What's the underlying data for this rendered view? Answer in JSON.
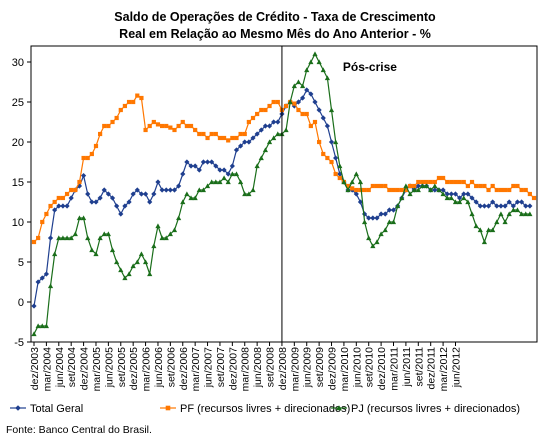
{
  "chart_data": {
    "type": "line",
    "title": "Saldo de Operações de Crédito - Taxa de Crescimento",
    "subtitle": "Real em Relação ao Mesmo Mês do Ano Anterior - %",
    "annotation": "Pós-crise",
    "event_x": "dez/2008",
    "ylim": [
      -5,
      32
    ],
    "yticks": [
      -5,
      0,
      5,
      10,
      15,
      20,
      25,
      30
    ],
    "grid": false,
    "legend_position": "bottom",
    "x_tick_labels": [
      "dez/2003",
      "mar/2004",
      "jun/2004",
      "set/2004",
      "dez/2004",
      "mar/2005",
      "jun/2005",
      "set/2005",
      "dez/2005",
      "mar/2006",
      "jun/2006",
      "set/2006",
      "dez/2006",
      "mar/2007",
      "jun/2007",
      "set/2007",
      "dez/2007",
      "mar/2008",
      "jun/2008",
      "set/2008",
      "dez/2008",
      "mar/2009",
      "jun/2009",
      "set/2009",
      "dez/2009",
      "mar/2010",
      "jun/2010",
      "set/2010",
      "dez/2010",
      "mar/2011",
      "jun/2011",
      "set/2011",
      "dez/2011",
      "mar/2012",
      "jun/2012"
    ],
    "series": [
      {
        "name": "Total Geral",
        "color": "#1f3f8f",
        "marker": "diamond",
        "values": [
          -0.5,
          2.5,
          3,
          3.5,
          8,
          11.5,
          12,
          12,
          12,
          13,
          14,
          14.5,
          15.8,
          13.5,
          12.5,
          12.5,
          13,
          14,
          13.5,
          13,
          12,
          11,
          12,
          12.5,
          13.5,
          14,
          13.5,
          13.5,
          12.5,
          13.5,
          15,
          14,
          14,
          14,
          14,
          14.5,
          16,
          17.5,
          17,
          17,
          16.5,
          17.5,
          17.5,
          17.5,
          17,
          16.5,
          16.5,
          16,
          17,
          19,
          19.5,
          20,
          20,
          20.5,
          21,
          21.5,
          22,
          22,
          22.5,
          22.5,
          23.5,
          24.5,
          25,
          24.5,
          25,
          25.5,
          26.5,
          26,
          25,
          24,
          23,
          22,
          20,
          18,
          16,
          15,
          14,
          14,
          13.5,
          12.5,
          11,
          10.5,
          10.5,
          10.5,
          11,
          11,
          11.5,
          11.5,
          12,
          13,
          14,
          14.5,
          14,
          14.5,
          14.5,
          14.5,
          14,
          14,
          14,
          14,
          13.5,
          13.5,
          13.5,
          13,
          13.5,
          13.5,
          13,
          12.5,
          12,
          12,
          12,
          12.5,
          12,
          12,
          12,
          12.5,
          12,
          12.5,
          12.5,
          12,
          12
        ],
        "labels": []
      },
      {
        "name": "PF (recursos livres + direcionados)",
        "color": "#ff7700",
        "marker": "square",
        "values": [
          7.5,
          8,
          10,
          11,
          12,
          12.5,
          13,
          13,
          13.5,
          14,
          14,
          15,
          18,
          18,
          18.5,
          19.5,
          21,
          22,
          22,
          22.5,
          23,
          24,
          24.5,
          25,
          25,
          25.8,
          25.5,
          21.5,
          22,
          22.5,
          22.2,
          22,
          22,
          21.8,
          21.5,
          22,
          22.5,
          22,
          22,
          21.5,
          21,
          21,
          20.5,
          21,
          21,
          20.5,
          20.5,
          20.2,
          20.5,
          20.5,
          21,
          21,
          22.5,
          23,
          23.5,
          24,
          24,
          24.5,
          25,
          25,
          24,
          24.5,
          25,
          24.8,
          24,
          23.5,
          23.5,
          22,
          22.5,
          20,
          18.5,
          18,
          17.5,
          16,
          15.5,
          15,
          14.5,
          14.2,
          14,
          14,
          14,
          14,
          14.5,
          14.5,
          14.5,
          14.5,
          14,
          14,
          14,
          14,
          14,
          14.5,
          14.5,
          15,
          15,
          15,
          15,
          15,
          15.5,
          15.5,
          15,
          15,
          15,
          15,
          15,
          14.5,
          15,
          14.5,
          14.5,
          14.5,
          14,
          14.5,
          14,
          14,
          14,
          14,
          14.5,
          14.5,
          14,
          14,
          13.5,
          13
        ],
        "labels": []
      },
      {
        "name": "PJ (recursos livres + direcionados)",
        "color": "#1a6e1a",
        "marker": "triangle",
        "values": [
          -4,
          -3,
          -3,
          -3,
          2,
          6,
          8,
          8,
          8,
          8,
          8.5,
          10.5,
          10.5,
          8,
          6.5,
          6,
          8,
          8.5,
          8.5,
          6.5,
          5,
          4,
          3,
          3.5,
          4.5,
          5,
          6,
          5,
          3.5,
          7,
          9.5,
          8,
          8,
          8.5,
          9,
          10.5,
          12.5,
          13.5,
          13,
          13,
          14,
          14,
          14.5,
          15,
          15,
          15,
          15.5,
          15,
          16,
          16,
          15,
          13.5,
          13.5,
          14,
          17,
          18,
          19,
          20,
          20.5,
          21,
          21,
          21.5,
          25,
          27,
          27.5,
          27,
          29,
          30,
          31,
          30,
          29,
          28,
          24,
          20,
          17,
          15,
          14,
          15,
          16,
          15,
          10,
          8,
          7,
          7.5,
          8.5,
          9,
          10,
          10,
          12,
          13,
          14.5,
          13.5,
          14,
          14,
          14.5,
          14.5,
          14,
          14.5,
          14,
          13.5,
          13,
          13,
          12.5,
          12.5,
          13,
          12.5,
          11,
          9.5,
          9,
          7.5,
          9,
          9,
          10,
          11,
          10,
          11,
          11.5,
          11.5,
          11,
          11,
          11
        ],
        "labels": []
      }
    ]
  },
  "source_note": "Fonte: Banco Central do Brasil."
}
